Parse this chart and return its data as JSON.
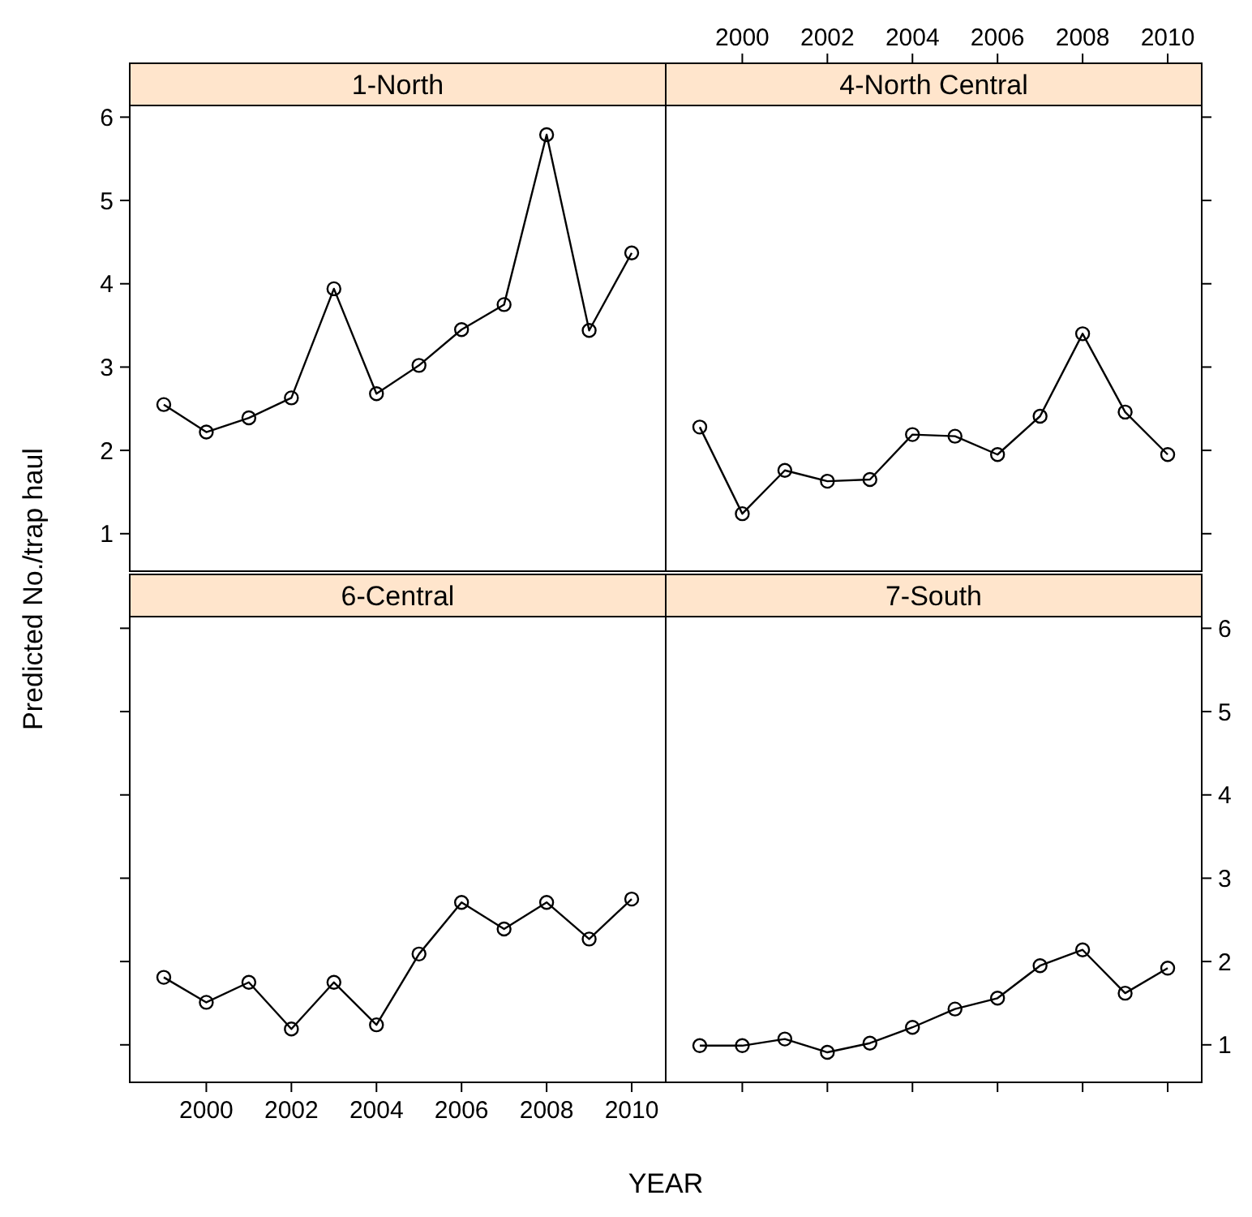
{
  "chart_data": [
    {
      "type": "line",
      "title": "1-North",
      "ylabel": "Predicted No./trap haul",
      "marker": "circle",
      "tick_labels": "y",
      "xlim": [
        1998.2,
        2010.8
      ],
      "xticks": [
        2000,
        2002,
        2004,
        2006,
        2008,
        2010
      ],
      "ylim": [
        0.55,
        6.14
      ],
      "yticks": [
        1,
        2,
        3,
        4,
        5,
        6
      ],
      "series": [
        {
          "color": "#000000",
          "x": [
            1999,
            2000,
            2001,
            2002,
            2003,
            2004,
            2005,
            2006,
            2007,
            2008,
            2009,
            2010
          ],
          "values": [
            2.55,
            2.22,
            2.39,
            2.63,
            3.94,
            2.68,
            3.02,
            3.45,
            3.75,
            5.79,
            3.44,
            4.37
          ]
        }
      ]
    },
    {
      "type": "line",
      "title": "4-North Central",
      "marker": "circle",
      "tick_labels": "x",
      "xlim": [
        1998.2,
        2010.8
      ],
      "xticks": [
        2000,
        2002,
        2004,
        2006,
        2008,
        2010
      ],
      "ylim": [
        0.55,
        6.14
      ],
      "yticks": [
        1,
        2,
        3,
        4,
        5,
        6
      ],
      "series": [
        {
          "color": "#000000",
          "x": [
            1999,
            2000,
            2001,
            2002,
            2003,
            2004,
            2005,
            2006,
            2007,
            2008,
            2009,
            2010
          ],
          "values": [
            2.28,
            1.24,
            1.76,
            1.63,
            1.65,
            2.19,
            2.17,
            1.95,
            2.41,
            3.4,
            2.46,
            1.95
          ]
        }
      ]
    },
    {
      "type": "line",
      "title": "6-Central",
      "xlabel": "YEAR",
      "marker": "circle",
      "tick_labels": "x",
      "xlim": [
        1998.2,
        2010.8
      ],
      "xticks": [
        2000,
        2002,
        2004,
        2006,
        2008,
        2010
      ],
      "ylim": [
        0.55,
        6.14
      ],
      "yticks": [
        1,
        2,
        3,
        4,
        5,
        6
      ],
      "series": [
        {
          "color": "#000000",
          "x": [
            1999,
            2000,
            2001,
            2002,
            2003,
            2004,
            2005,
            2006,
            2007,
            2008,
            2009,
            2010
          ],
          "values": [
            1.81,
            1.51,
            1.75,
            1.19,
            1.75,
            1.24,
            2.09,
            2.71,
            2.39,
            2.71,
            2.27,
            2.75
          ]
        }
      ]
    },
    {
      "type": "line",
      "title": "7-South",
      "marker": "circle",
      "tick_labels": "y",
      "xlim": [
        1998.2,
        2010.8
      ],
      "xticks": [
        2000,
        2002,
        2004,
        2006,
        2008,
        2010
      ],
      "ylim": [
        0.55,
        6.14
      ],
      "yticks": [
        1,
        2,
        3,
        4,
        5,
        6
      ],
      "series": [
        {
          "color": "#000000",
          "x": [
            1999,
            2000,
            2001,
            2002,
            2003,
            2004,
            2005,
            2006,
            2007,
            2008,
            2009,
            2010
          ],
          "values": [
            0.99,
            0.99,
            1.07,
            0.91,
            1.02,
            1.21,
            1.43,
            1.56,
            1.95,
            2.14,
            1.62,
            1.92
          ]
        }
      ]
    }
  ]
}
